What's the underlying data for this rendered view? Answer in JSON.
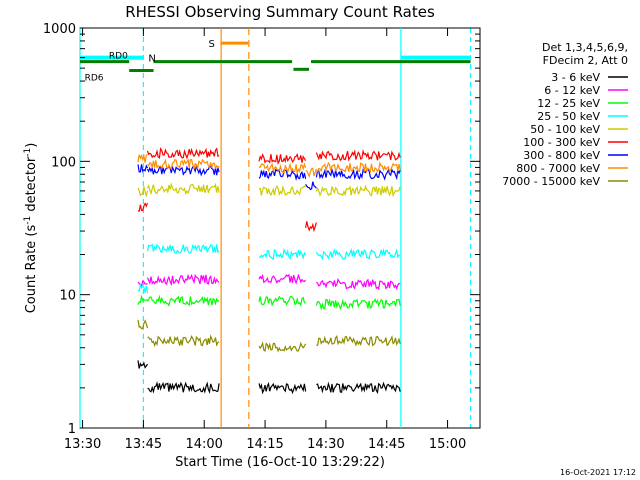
{
  "chart_data": {
    "type": "line",
    "title": "RHESSI Observing Summary Count Rates",
    "xlabel": "Start Time (16-Oct-10 13:29:22)",
    "ylabel_main": "Count Rate (s",
    "ylabel_sup": "-1",
    "ylabel_end": " detector",
    "ylabel_end_sup": "-1",
    "ylabel_close": ")",
    "yscale": "log",
    "ylim": [
      1,
      1000
    ],
    "xlim": [
      "13:29:22",
      "15:08:00"
    ],
    "x_ticks": [
      "13:30",
      "13:45",
      "14:00",
      "14:15",
      "14:30",
      "14:45",
      "15:00"
    ],
    "y_ticks": [
      "1",
      "10",
      "100",
      "1000"
    ],
    "legend_header": [
      "Det 1,3,4,5,6,9,",
      "FDecim 2, Att 0"
    ],
    "footer_date": "16-Oct-2021 17:12",
    "annotations": {
      "n_label": "N",
      "s_label": "S",
      "rd0_label": "RD0",
      "rd6_label": "RD6"
    },
    "series": [
      {
        "name": "3 - 6 keV",
        "color": "#000000",
        "segments": [
          [
            "13:43:40",
            "13:46:00",
            3
          ],
          [
            "13:46:00",
            "14:03:40",
            2
          ],
          [
            "14:13:30",
            "14:25:00",
            2
          ],
          [
            "14:27:40",
            "14:48:20",
            2
          ]
        ]
      },
      {
        "name": "6 - 12 keV",
        "color": "#ff00ff",
        "segments": [
          [
            "13:43:40",
            "13:46:00",
            12
          ],
          [
            "13:46:00",
            "14:03:40",
            13
          ],
          [
            "14:13:30",
            "14:25:00",
            13
          ],
          [
            "14:27:40",
            "14:48:20",
            12
          ]
        ]
      },
      {
        "name": "12 - 25 keV",
        "color": "#00ff00",
        "segments": [
          [
            "13:43:40",
            "13:46:00",
            9
          ],
          [
            "13:46:00",
            "14:03:40",
            9
          ],
          [
            "14:13:30",
            "14:25:00",
            9
          ],
          [
            "14:27:40",
            "14:48:20",
            8.5
          ]
        ]
      },
      {
        "name": "25 - 50 keV",
        "color": "#00ffff",
        "segments": [
          [
            "13:43:40",
            "13:46:00",
            11
          ],
          [
            "13:46:00",
            "14:03:40",
            22
          ],
          [
            "14:13:30",
            "14:25:00",
            20
          ],
          [
            "14:27:40",
            "14:48:20",
            20
          ]
        ]
      },
      {
        "name": "50 - 100 keV",
        "color": "#cccc00",
        "segments": [
          [
            "13:43:40",
            "13:46:00",
            60
          ],
          [
            "13:46:00",
            "14:03:40",
            62
          ],
          [
            "14:13:30",
            "14:25:00",
            60
          ],
          [
            "14:27:40",
            "14:48:20",
            60
          ]
        ]
      },
      {
        "name": "100 - 300 keV",
        "color": "#ff0000",
        "segments": [
          [
            "13:43:40",
            "13:46:00",
            45
          ],
          [
            "13:46:00",
            "14:03:40",
            115
          ],
          [
            "14:13:30",
            "14:25:00",
            105
          ],
          [
            "14:25:00",
            "14:27:40",
            33
          ],
          [
            "14:27:40",
            "14:48:20",
            110
          ]
        ]
      },
      {
        "name": "300 - 800 keV",
        "color": "#0000ff",
        "segments": [
          [
            "13:43:40",
            "13:46:00",
            90
          ],
          [
            "13:46:00",
            "14:03:40",
            85
          ],
          [
            "14:13:30",
            "14:25:00",
            80
          ],
          [
            "14:25:00",
            "14:27:40",
            65
          ],
          [
            "14:27:40",
            "14:48:20",
            80
          ]
        ]
      },
      {
        "name": "800 - 7000 keV",
        "color": "#ff8c00",
        "segments": [
          [
            "13:43:40",
            "13:46:00",
            105
          ],
          [
            "13:46:00",
            "14:03:40",
            95
          ],
          [
            "14:13:30",
            "14:25:00",
            88
          ],
          [
            "14:25:00",
            "14:27:40",
            82
          ],
          [
            "14:27:40",
            "14:48:20",
            90
          ]
        ]
      },
      {
        "name": "7000 - 15000 keV",
        "color": "#8b8b00",
        "segments": [
          [
            "13:43:40",
            "13:46:00",
            6
          ],
          [
            "13:46:00",
            "14:03:40",
            4.5
          ],
          [
            "14:13:30",
            "14:25:00",
            4
          ],
          [
            "14:27:40",
            "14:48:20",
            4.5
          ]
        ]
      }
    ],
    "markers": {
      "cyan_solid_times": [
        "13:29:22",
        "14:48:30"
      ],
      "cyan_dashed_times": [
        "13:45:00",
        "15:05:40"
      ],
      "orange_solid_times": [
        "14:04:10"
      ],
      "orange_dashed_times": [
        "14:11:00"
      ],
      "cyan_bars": [
        [
          "13:29:22",
          "13:45:00",
          600
        ],
        [
          "14:48:30",
          "15:05:40",
          600
        ]
      ],
      "green_bars": [
        [
          "13:29:22",
          "13:41:30",
          560
        ],
        [
          "13:41:30",
          "13:47:30",
          480
        ],
        [
          "13:47:30",
          "14:21:40",
          560
        ],
        [
          "14:22:00",
          "14:25:50",
          490
        ],
        [
          "14:26:20",
          "15:05:40",
          560
        ]
      ],
      "orange_bar": [
        "14:04:00",
        "14:10:50",
        770
      ]
    }
  }
}
